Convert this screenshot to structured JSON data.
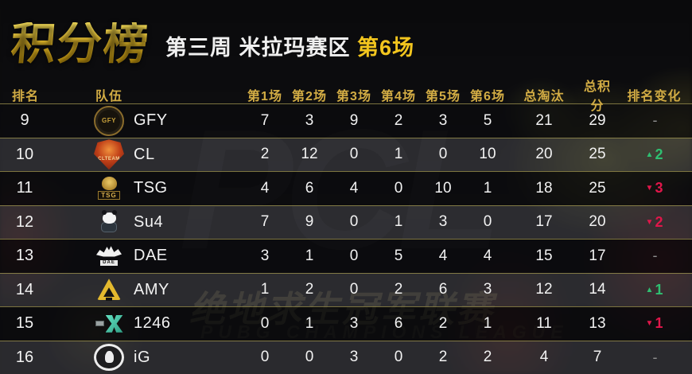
{
  "header": {
    "title": "积分榜",
    "subtitle_prefix": "第三周 米拉玛赛区 ",
    "subtitle_highlight": "第6场"
  },
  "watermark": {
    "pcl": "PCL",
    "cn": "绝地求生冠军联赛",
    "en": "PUBG CHAMPIONS LEAGUE"
  },
  "columns": {
    "rank": "排名",
    "team": "队伍",
    "matches": [
      "第1场",
      "第2场",
      "第3场",
      "第4场",
      "第5场",
      "第6场"
    ],
    "total_kills": "总淘汰",
    "total_points": "总积分",
    "rank_change": "排名变化"
  },
  "colors": {
    "title_gold": "#f3c62d",
    "header_gold": "#d2ac44",
    "separator_gold": "#988e4c",
    "up_green": "#2fbf71",
    "down_red": "#e0164a"
  },
  "rows": [
    {
      "rank": "9",
      "team": "GFY",
      "logo": "gfy-logo",
      "scores": [
        "7",
        "3",
        "9",
        "2",
        "3",
        "5"
      ],
      "kills": "21",
      "points": "29",
      "change": {
        "dir": "none",
        "arrow": "",
        "value": "-"
      }
    },
    {
      "rank": "10",
      "team": "CL",
      "logo": "cl-logo",
      "scores": [
        "2",
        "12",
        "0",
        "1",
        "0",
        "10"
      ],
      "kills": "20",
      "points": "25",
      "change": {
        "dir": "up",
        "arrow": "▲",
        "value": "2"
      }
    },
    {
      "rank": "11",
      "team": "TSG",
      "logo": "tsg-logo",
      "scores": [
        "4",
        "6",
        "4",
        "0",
        "10",
        "1"
      ],
      "kills": "18",
      "points": "25",
      "change": {
        "dir": "down",
        "arrow": "▼",
        "value": "3"
      }
    },
    {
      "rank": "12",
      "team": "Su4",
      "logo": "su4-logo",
      "scores": [
        "7",
        "9",
        "0",
        "1",
        "3",
        "0"
      ],
      "kills": "17",
      "points": "20",
      "change": {
        "dir": "down",
        "arrow": "▼",
        "value": "2"
      }
    },
    {
      "rank": "13",
      "team": "DAE",
      "logo": "dae-logo",
      "scores": [
        "3",
        "1",
        "0",
        "5",
        "4",
        "4"
      ],
      "kills": "15",
      "points": "17",
      "change": {
        "dir": "none",
        "arrow": "",
        "value": "-"
      }
    },
    {
      "rank": "14",
      "team": "AMY",
      "logo": "amy-logo",
      "scores": [
        "1",
        "2",
        "0",
        "2",
        "6",
        "3"
      ],
      "kills": "12",
      "points": "14",
      "change": {
        "dir": "up",
        "arrow": "▲",
        "value": "1"
      }
    },
    {
      "rank": "15",
      "team": "1246",
      "logo": "1246-logo",
      "scores": [
        "0",
        "1",
        "3",
        "6",
        "2",
        "1"
      ],
      "kills": "11",
      "points": "13",
      "change": {
        "dir": "down",
        "arrow": "▼",
        "value": "1"
      }
    },
    {
      "rank": "16",
      "team": "iG",
      "logo": "ig-logo",
      "scores": [
        "0",
        "0",
        "3",
        "0",
        "2",
        "2"
      ],
      "kills": "4",
      "points": "7",
      "change": {
        "dir": "none",
        "arrow": "",
        "value": "-"
      }
    }
  ],
  "logo_texts": {
    "gfy": "GFY",
    "cl": "CLTEAM",
    "tsg": "TSG",
    "dae": "DAE"
  }
}
